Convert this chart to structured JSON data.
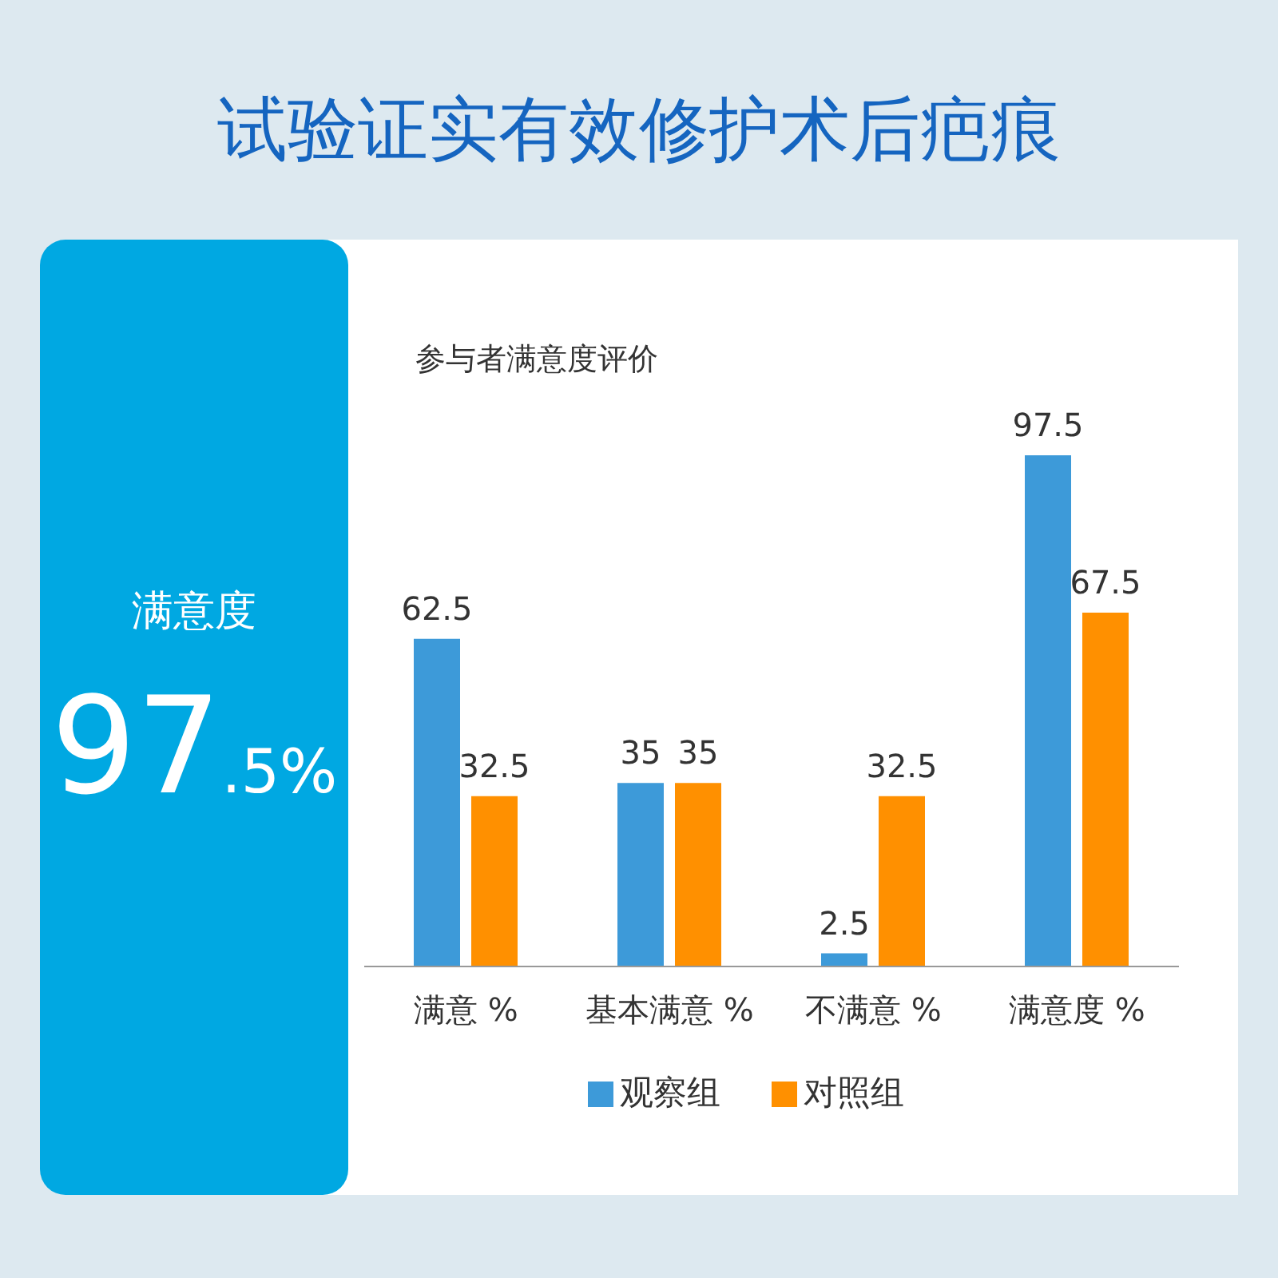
{
  "chart_data": {
    "type": "bar",
    "title": "试验证实有效修护术后疤痕",
    "subtitle": "参与者满意度评价",
    "annotations": [
      "满意度",
      "97.5%"
    ],
    "categories": [
      "满意 %",
      "基本满意 %",
      "不满意 %",
      "满意度  %"
    ],
    "series": [
      {
        "name": "观察组",
        "color": "#3d9ad9",
        "values": [
          62.5,
          35,
          2.5,
          97.5
        ]
      },
      {
        "name": "对照组",
        "color": "#ff9000",
        "values": [
          32.5,
          35,
          32.5,
          67.5
        ]
      }
    ],
    "data_labels": true,
    "legend": "bottom"
  }
}
